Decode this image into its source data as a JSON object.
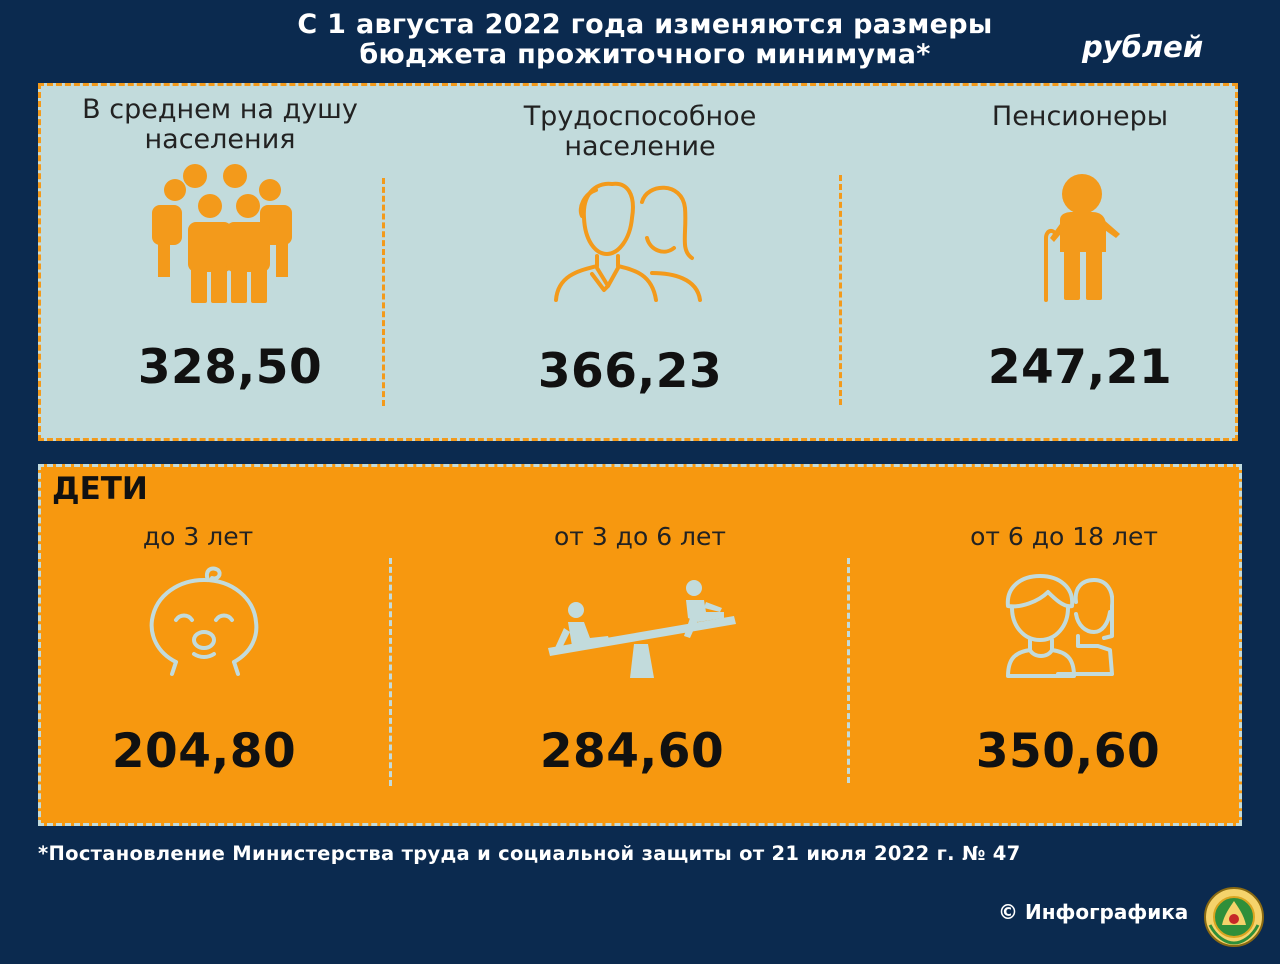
{
  "header": {
    "title_line1": "С 1 августа 2022 года изменяются размеры",
    "title_line2": "бюджета прожиточного минимума*",
    "unit": "рублей"
  },
  "adults": [
    {
      "label_line1": "В среднем на душу",
      "label_line2": "населения",
      "value": "328,50",
      "icon": "people-group-icon"
    },
    {
      "label_line1": "Трудоспособное",
      "label_line2": "население",
      "value": "366,23",
      "icon": "man-woman-icon"
    },
    {
      "label_line1": "Пенсионеры",
      "value": "247,21",
      "icon": "elderly-person-icon"
    }
  ],
  "children": {
    "heading": "ДЕТИ",
    "groups": [
      {
        "label": "до 3 лет",
        "value": "204,80",
        "icon": "baby-face-icon"
      },
      {
        "label": "от 3 до 6 лет",
        "value": "284,60",
        "icon": "seesaw-icon"
      },
      {
        "label": "от 6 до 18 лет",
        "value": "350,60",
        "icon": "teenagers-icon"
      }
    ]
  },
  "footnote": "*Постановление Министерства труда и социальной защиты от 21 июля 2022 г. № 47",
  "credit": "© Инфографика",
  "colors": {
    "background": "#0b2a4f",
    "orange": "#f7980f",
    "light": "#c2dbdc"
  }
}
